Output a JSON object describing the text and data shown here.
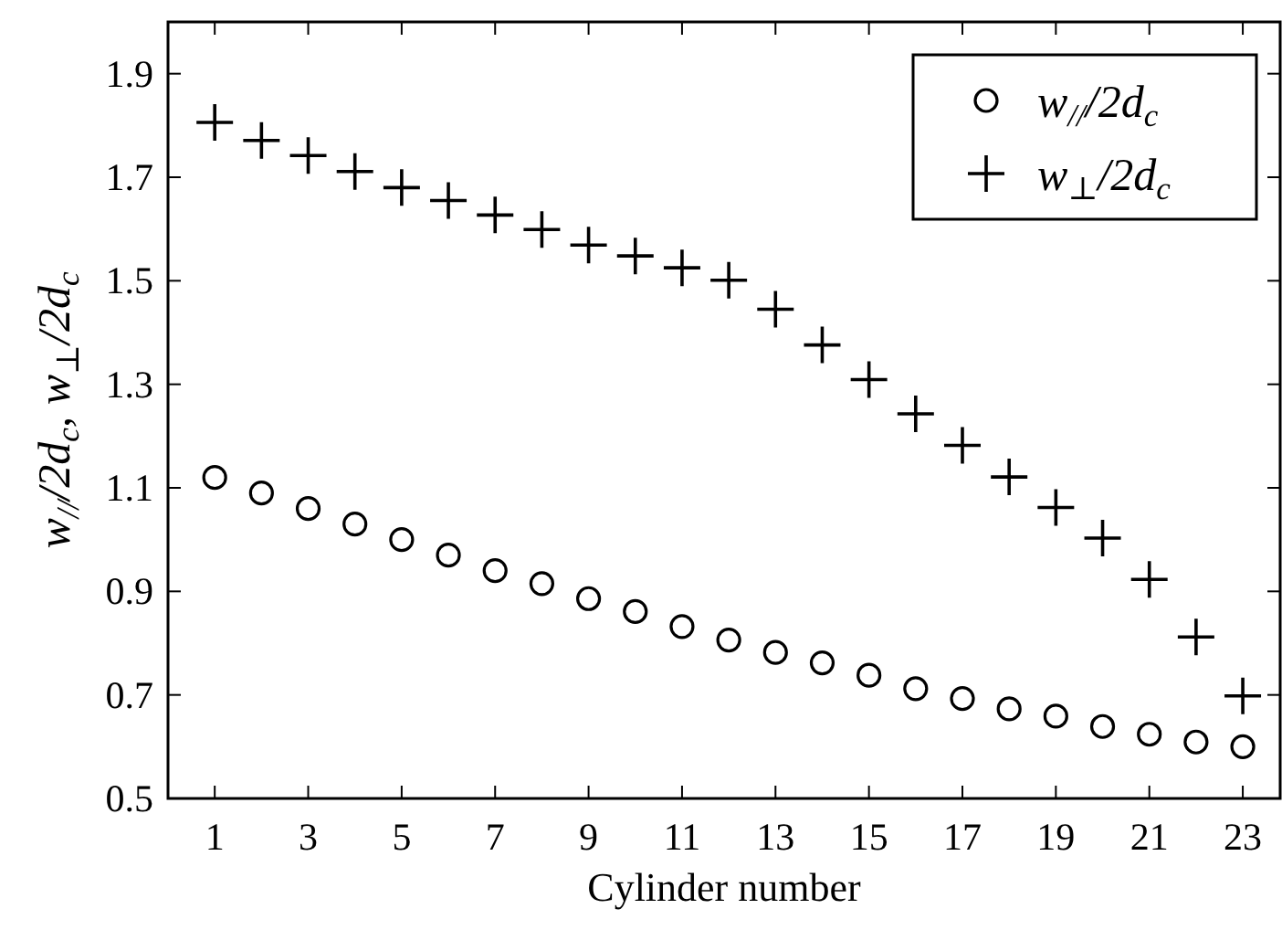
{
  "chart_data": {
    "type": "scatter",
    "xlabel": "Cylinder number",
    "ylabel": "w$_{//}$/2d$_{c}$, w$_{⊥}$/2d$_{c}$",
    "x": [
      1,
      2,
      3,
      4,
      5,
      6,
      7,
      8,
      9,
      10,
      11,
      12,
      13,
      14,
      15,
      16,
      17,
      18,
      19,
      20,
      21,
      22,
      23
    ],
    "xlim": [
      0,
      23.8
    ],
    "xticks": [
      1,
      3,
      5,
      7,
      9,
      11,
      13,
      15,
      17,
      19,
      21,
      23
    ],
    "ylim": [
      0.5,
      2.0
    ],
    "yticks": [
      0.5,
      0.7,
      0.9,
      1.1,
      1.3,
      1.5,
      1.7,
      1.9
    ],
    "grid": false,
    "legend": "top right",
    "series": [
      {
        "name": "w$_{//}$/2d$_{c}$",
        "color": "#000000",
        "marker": "circle",
        "values": [
          1.12,
          1.09,
          1.06,
          1.03,
          1.0,
          0.97,
          0.94,
          0.915,
          0.886,
          0.861,
          0.832,
          0.806,
          0.782,
          0.762,
          0.738,
          0.712,
          0.693,
          0.673,
          0.659,
          0.639,
          0.624,
          0.609,
          0.6
        ]
      },
      {
        "name": "w$_{⊥}$/2d$_{c}$",
        "color": "#000000",
        "marker": "cross",
        "values": [
          1.806,
          1.771,
          1.742,
          1.711,
          1.68,
          1.655,
          1.627,
          1.599,
          1.569,
          1.548,
          1.525,
          1.501,
          1.445,
          1.376,
          1.309,
          1.243,
          1.182,
          1.121,
          1.062,
          1.003,
          0.923,
          0.812,
          0.698
        ]
      }
    ]
  }
}
